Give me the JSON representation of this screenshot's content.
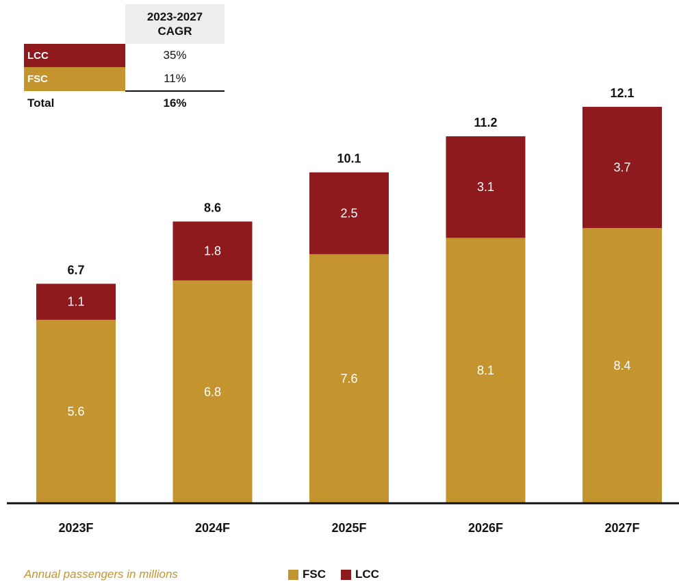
{
  "colors": {
    "FSC": "#c4952f",
    "LCC": "#8f1a1d"
  },
  "cagr_table": {
    "header": "2023-2027\nCAGR",
    "rows": [
      {
        "label": "LCC",
        "value": "35%"
      },
      {
        "label": "FSC",
        "value": "11%"
      }
    ],
    "total_label": "Total",
    "total_value": "16%"
  },
  "footer_note": "Annual passengers in millions",
  "legend": [
    {
      "name": "FSC",
      "color": "#c4952f"
    },
    {
      "name": "LCC",
      "color": "#8f1a1d"
    }
  ],
  "chart_data": {
    "type": "bar",
    "stacked": true,
    "categories": [
      "2023F",
      "2024F",
      "2025F",
      "2026F",
      "2027F"
    ],
    "series": [
      {
        "name": "FSC",
        "values": [
          5.6,
          6.8,
          7.6,
          8.1,
          8.4
        ]
      },
      {
        "name": "LCC",
        "values": [
          1.1,
          1.8,
          2.5,
          3.1,
          3.7
        ]
      }
    ],
    "totals": [
      6.7,
      8.6,
      10.1,
      11.2,
      12.1
    ],
    "ylim": [
      0,
      14.1
    ],
    "legend_position": "bottom"
  }
}
